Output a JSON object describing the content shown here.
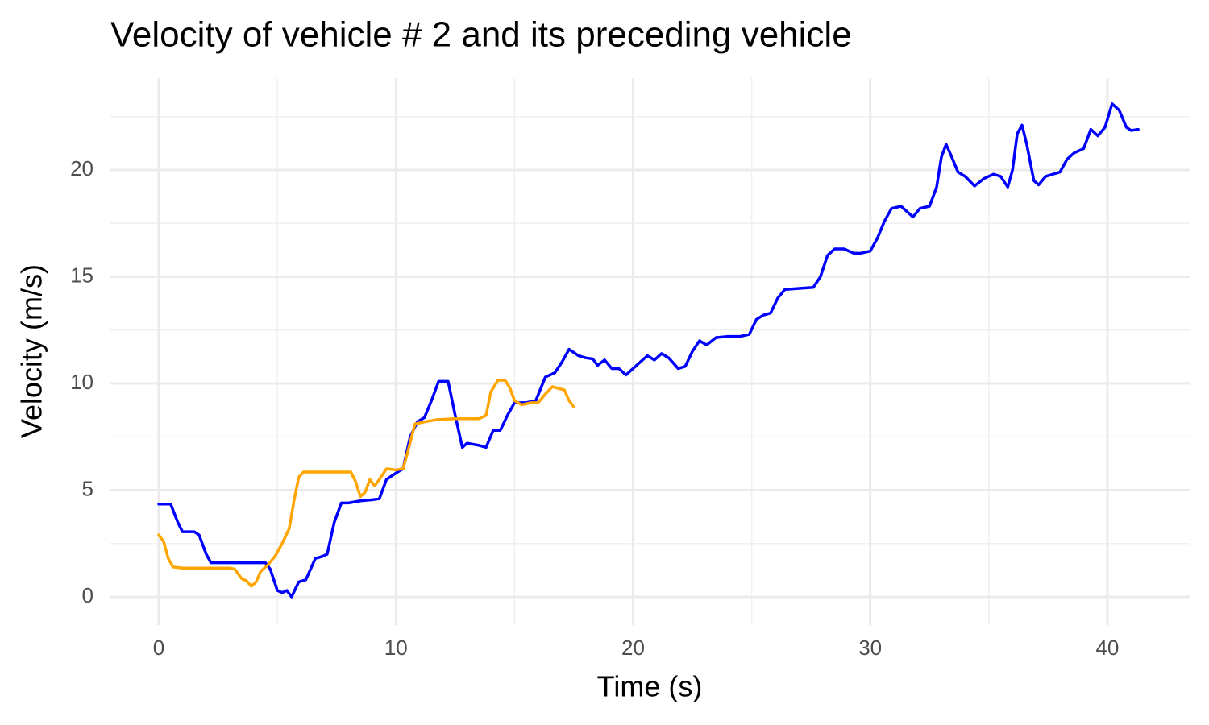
{
  "chart_data": {
    "type": "line",
    "title": "Velocity of vehicle # 2 and its preceding vehicle",
    "x_label": "Time (s)",
    "y_label": "Velocity (m/s)",
    "xlim": [
      -2.04,
      43.47
    ],
    "ylim": [
      -1.32,
      24.3
    ],
    "xticks": [
      0,
      10,
      20,
      30,
      40
    ],
    "yticks": [
      0,
      5,
      10,
      15,
      20
    ],
    "x_minor_grid": [
      5,
      15,
      25,
      35
    ],
    "y_minor_grid": [
      2.5,
      7.5,
      12.5,
      17.5,
      22.5
    ],
    "grid": true,
    "series": [
      {
        "color": "#0000ff",
        "x": [
          0,
          0.5,
          0.8,
          1.0,
          1.5,
          1.7,
          2.0,
          2.2,
          3,
          4.5,
          4.7,
          5.0,
          5.2,
          5.4,
          5.6,
          5.9,
          6.2,
          6.6,
          6.9,
          7.1,
          7.4,
          7.7,
          8.0,
          8.5,
          9.0,
          9.3,
          9.6,
          10.0,
          10.3,
          10.6,
          10.9,
          11.2,
          11.5,
          11.8,
          12.2,
          12.5,
          12.8,
          13.0,
          13.5,
          13.8,
          14.1,
          14.4,
          14.7,
          15.0,
          15.5,
          15.9,
          16.3,
          16.7,
          17.0,
          17.3,
          17.7,
          18.0,
          18.3,
          18.5,
          18.8,
          19.1,
          19.4,
          19.7,
          20.0,
          20.3,
          20.6,
          20.9,
          21.2,
          21.5,
          21.9,
          22.2,
          22.5,
          22.8,
          23.1,
          23.5,
          24.0,
          24.5,
          24.9,
          25.2,
          25.5,
          25.8,
          26.1,
          26.4,
          27.0,
          27.6,
          27.9,
          28.2,
          28.5,
          28.9,
          29.3,
          29.6,
          30.0,
          30.3,
          30.6,
          30.9,
          31.3,
          31.6,
          31.8,
          32.1,
          32.5,
          32.8,
          33.0,
          33.2,
          33.4,
          33.7,
          34.0,
          34.4,
          34.8,
          35.2,
          35.5,
          35.8,
          36.0,
          36.2,
          36.4,
          36.6,
          36.9,
          37.1,
          37.4,
          37.7,
          38.0,
          38.3,
          38.6,
          39.0,
          39.3,
          39.6,
          39.9,
          40.2,
          40.5,
          40.8,
          41.0,
          41.3
        ],
        "values": [
          4.35,
          4.35,
          3.5,
          3.05,
          3.05,
          2.9,
          2.0,
          1.6,
          1.6,
          1.6,
          1.3,
          0.3,
          0.2,
          0.3,
          0.0,
          0.7,
          0.8,
          1.8,
          1.9,
          2.0,
          3.5,
          4.4,
          4.4,
          4.5,
          4.55,
          4.6,
          5.5,
          5.8,
          6.0,
          7.5,
          8.2,
          8.4,
          9.2,
          10.1,
          10.1,
          8.5,
          7.0,
          7.2,
          7.1,
          7.0,
          7.8,
          7.8,
          8.5,
          9.1,
          9.1,
          9.2,
          10.3,
          10.5,
          11.0,
          11.6,
          11.3,
          11.2,
          11.15,
          10.85,
          11.1,
          10.7,
          10.7,
          10.4,
          10.7,
          11.0,
          11.3,
          11.1,
          11.4,
          11.2,
          10.7,
          10.8,
          11.5,
          12.0,
          11.8,
          12.15,
          12.2,
          12.2,
          12.3,
          13.0,
          13.2,
          13.3,
          14.0,
          14.4,
          14.45,
          14.5,
          15.0,
          16.0,
          16.3,
          16.3,
          16.1,
          16.1,
          16.2,
          16.8,
          17.6,
          18.2,
          18.3,
          18.0,
          17.8,
          18.2,
          18.3,
          19.2,
          20.6,
          21.2,
          20.7,
          19.9,
          19.7,
          19.25,
          19.6,
          19.8,
          19.7,
          19.2,
          20.0,
          21.7,
          22.1,
          21.2,
          19.5,
          19.3,
          19.7,
          19.8,
          19.9,
          20.5,
          20.8,
          21.0,
          21.9,
          21.6,
          22.0,
          23.1,
          22.8,
          22.0,
          21.85,
          21.9
        ]
      },
      {
        "color": "#ffa500",
        "x": [
          0,
          0.2,
          0.4,
          0.6,
          1.0,
          2.0,
          3.0,
          3.2,
          3.5,
          3.7,
          3.9,
          4.1,
          4.3,
          4.6,
          4.9,
          5.2,
          5.5,
          5.7,
          5.9,
          6.1,
          6.5,
          7.5,
          8.1,
          8.3,
          8.5,
          8.7,
          8.9,
          9.1,
          9.3,
          9.6,
          10.0,
          10.3,
          10.5,
          10.8,
          11.2,
          11.7,
          12.5,
          13.5,
          13.8,
          14.0,
          14.3,
          14.6,
          14.8,
          15.0,
          15.3,
          15.7,
          16.0,
          16.3,
          16.6,
          16.9,
          17.1,
          17.3,
          17.5
        ],
        "values": [
          2.9,
          2.6,
          1.8,
          1.4,
          1.35,
          1.35,
          1.35,
          1.3,
          0.85,
          0.75,
          0.5,
          0.7,
          1.2,
          1.5,
          1.9,
          2.5,
          3.2,
          4.5,
          5.6,
          5.85,
          5.85,
          5.85,
          5.85,
          5.4,
          4.7,
          4.9,
          5.5,
          5.2,
          5.5,
          6.0,
          5.95,
          6.0,
          6.8,
          8.1,
          8.2,
          8.3,
          8.35,
          8.35,
          8.5,
          9.6,
          10.15,
          10.15,
          9.8,
          9.2,
          9.0,
          9.1,
          9.1,
          9.5,
          9.85,
          9.75,
          9.7,
          9.2,
          8.9
        ]
      }
    ]
  }
}
